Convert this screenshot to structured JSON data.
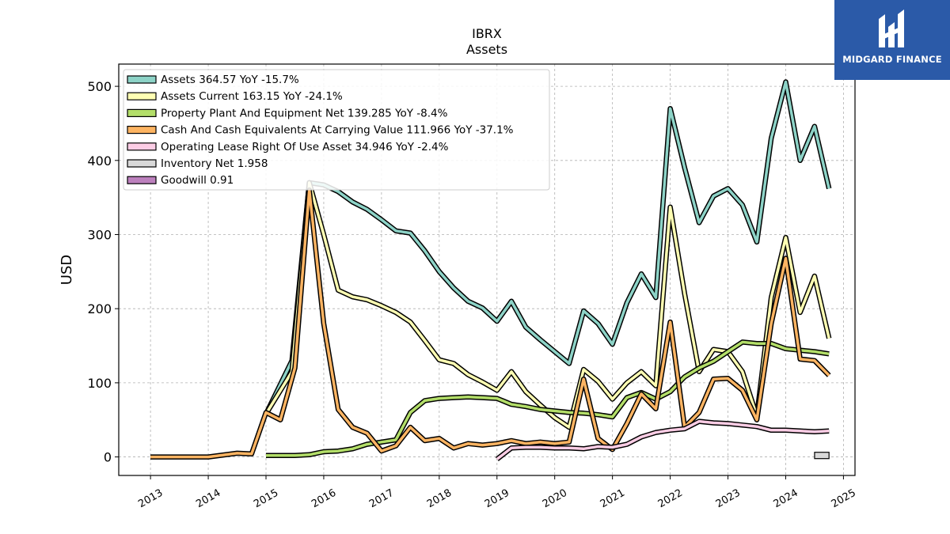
{
  "branding": {
    "logo_text": "MIDGARD FINANCE",
    "logo_color": "#2b5aa8"
  },
  "chart_data": {
    "type": "line",
    "title": "IBRX",
    "subtitle": "Assets",
    "ylabel": "USD",
    "xlabel": "",
    "xlim": [
      2012.45,
      2025.2
    ],
    "ylim": [
      -25,
      530
    ],
    "yticks": [
      0,
      100,
      200,
      300,
      400,
      500
    ],
    "xticks": [
      2013,
      2014,
      2015,
      2016,
      2017,
      2018,
      2019,
      2020,
      2021,
      2022,
      2023,
      2024,
      2025
    ],
    "grid": true,
    "legend_position": "top-left",
    "series": [
      {
        "name": "Assets",
        "legend": "Assets  364.57 YoY -15.7%",
        "color": "#8dd3c7",
        "points": [
          [
            2015.0,
            58
          ],
          [
            2015.45,
            130
          ],
          [
            2015.75,
            370
          ],
          [
            2016.0,
            367
          ],
          [
            2016.25,
            358
          ],
          [
            2016.5,
            344
          ],
          [
            2016.75,
            334
          ],
          [
            2017.0,
            320
          ],
          [
            2017.25,
            305
          ],
          [
            2017.5,
            302
          ],
          [
            2017.75,
            278
          ],
          [
            2018.0,
            250
          ],
          [
            2018.25,
            228
          ],
          [
            2018.5,
            210
          ],
          [
            2018.75,
            201
          ],
          [
            2019.0,
            183
          ],
          [
            2019.25,
            210
          ],
          [
            2019.5,
            175
          ],
          [
            2019.75,
            158
          ],
          [
            2020.0,
            142
          ],
          [
            2020.25,
            126
          ],
          [
            2020.5,
            197
          ],
          [
            2020.75,
            180
          ],
          [
            2021.0,
            152
          ],
          [
            2021.25,
            208
          ],
          [
            2021.5,
            247
          ],
          [
            2021.75,
            215
          ],
          [
            2022.0,
            470
          ],
          [
            2022.25,
            390
          ],
          [
            2022.5,
            316
          ],
          [
            2022.75,
            352
          ],
          [
            2023.0,
            362
          ],
          [
            2023.25,
            340
          ],
          [
            2023.5,
            290
          ],
          [
            2023.75,
            430
          ],
          [
            2024.0,
            506
          ],
          [
            2024.25,
            400
          ],
          [
            2024.5,
            446
          ],
          [
            2024.75,
            362
          ]
        ]
      },
      {
        "name": "Assets Current",
        "legend": "Assets Current  163.15 YoY -24.1%",
        "color": "#ffffb3",
        "points": [
          [
            2015.0,
            58
          ],
          [
            2015.45,
            115
          ],
          [
            2015.75,
            370
          ],
          [
            2016.0,
            300
          ],
          [
            2016.25,
            225
          ],
          [
            2016.5,
            216
          ],
          [
            2016.75,
            212
          ],
          [
            2017.0,
            204
          ],
          [
            2017.25,
            195
          ],
          [
            2017.5,
            182
          ],
          [
            2017.75,
            157
          ],
          [
            2018.0,
            131
          ],
          [
            2018.25,
            126
          ],
          [
            2018.5,
            111
          ],
          [
            2018.75,
            101
          ],
          [
            2019.0,
            90
          ],
          [
            2019.25,
            115
          ],
          [
            2019.5,
            88
          ],
          [
            2019.75,
            70
          ],
          [
            2020.0,
            53
          ],
          [
            2020.25,
            40
          ],
          [
            2020.5,
            118
          ],
          [
            2020.75,
            102
          ],
          [
            2021.0,
            78
          ],
          [
            2021.25,
            100
          ],
          [
            2021.5,
            115
          ],
          [
            2021.75,
            96
          ],
          [
            2022.0,
            337
          ],
          [
            2022.25,
            220
          ],
          [
            2022.5,
            115
          ],
          [
            2022.75,
            145
          ],
          [
            2023.0,
            142
          ],
          [
            2023.25,
            115
          ],
          [
            2023.5,
            55
          ],
          [
            2023.75,
            215
          ],
          [
            2024.0,
            296
          ],
          [
            2024.25,
            195
          ],
          [
            2024.5,
            244
          ],
          [
            2024.75,
            160
          ]
        ]
      },
      {
        "name": "Property Plant And Equipment Net",
        "legend": "Property Plant And Equipment Net  139.285 YoY -8.4%",
        "color": "#b3de69",
        "points": [
          [
            2015.0,
            2
          ],
          [
            2015.5,
            2
          ],
          [
            2015.75,
            3
          ],
          [
            2016.0,
            7
          ],
          [
            2016.25,
            8
          ],
          [
            2016.5,
            11
          ],
          [
            2016.75,
            17
          ],
          [
            2017.0,
            20
          ],
          [
            2017.25,
            23
          ],
          [
            2017.5,
            60
          ],
          [
            2017.75,
            76
          ],
          [
            2018.0,
            79
          ],
          [
            2018.25,
            80
          ],
          [
            2018.5,
            81
          ],
          [
            2018.75,
            80
          ],
          [
            2019.0,
            79
          ],
          [
            2019.25,
            71
          ],
          [
            2019.5,
            68
          ],
          [
            2019.75,
            64
          ],
          [
            2020.0,
            62
          ],
          [
            2020.25,
            60
          ],
          [
            2020.5,
            59
          ],
          [
            2020.75,
            57
          ],
          [
            2021.0,
            54
          ],
          [
            2021.25,
            80
          ],
          [
            2021.5,
            87
          ],
          [
            2021.75,
            78
          ],
          [
            2022.0,
            88
          ],
          [
            2022.25,
            108
          ],
          [
            2022.5,
            120
          ],
          [
            2022.75,
            129
          ],
          [
            2023.0,
            142
          ],
          [
            2023.25,
            155
          ],
          [
            2023.5,
            153
          ],
          [
            2023.75,
            153
          ],
          [
            2024.0,
            146
          ],
          [
            2024.25,
            144
          ],
          [
            2024.5,
            142
          ],
          [
            2024.75,
            139
          ]
        ]
      },
      {
        "name": "Cash And Cash Equivalents At Carrying Value",
        "legend": "Cash And Cash Equivalents At Carrying Value  111.966 YoY -37.1%",
        "color": "#fdb462",
        "points": [
          [
            2013.0,
            0
          ],
          [
            2014.0,
            0
          ],
          [
            2014.5,
            5
          ],
          [
            2014.75,
            4
          ],
          [
            2015.0,
            60
          ],
          [
            2015.25,
            50
          ],
          [
            2015.5,
            120
          ],
          [
            2015.75,
            360
          ],
          [
            2016.0,
            180
          ],
          [
            2016.25,
            64
          ],
          [
            2016.5,
            40
          ],
          [
            2016.75,
            32
          ],
          [
            2017.0,
            8
          ],
          [
            2017.25,
            15
          ],
          [
            2017.5,
            40
          ],
          [
            2017.75,
            22
          ],
          [
            2018.0,
            25
          ],
          [
            2018.25,
            12
          ],
          [
            2018.5,
            18
          ],
          [
            2018.75,
            16
          ],
          [
            2019.0,
            18
          ],
          [
            2019.25,
            22
          ],
          [
            2019.5,
            18
          ],
          [
            2019.75,
            20
          ],
          [
            2020.0,
            18
          ],
          [
            2020.25,
            20
          ],
          [
            2020.5,
            105
          ],
          [
            2020.75,
            25
          ],
          [
            2021.0,
            10
          ],
          [
            2021.25,
            45
          ],
          [
            2021.5,
            85
          ],
          [
            2021.75,
            65
          ],
          [
            2022.0,
            182
          ],
          [
            2022.25,
            40
          ],
          [
            2022.5,
            60
          ],
          [
            2022.75,
            105
          ],
          [
            2023.0,
            106
          ],
          [
            2023.25,
            90
          ],
          [
            2023.5,
            50
          ],
          [
            2023.75,
            180
          ],
          [
            2024.0,
            268
          ],
          [
            2024.25,
            132
          ],
          [
            2024.5,
            130
          ],
          [
            2024.75,
            110
          ]
        ]
      },
      {
        "name": "Operating Lease Right Of Use Asset",
        "legend": "Operating Lease Right Of Use Asset  34.946 YoY -2.4%",
        "color": "#fccde5",
        "points": [
          [
            2019.0,
            -3
          ],
          [
            2019.25,
            12
          ],
          [
            2019.5,
            13
          ],
          [
            2019.75,
            13
          ],
          [
            2020.0,
            12
          ],
          [
            2020.25,
            12
          ],
          [
            2020.5,
            11
          ],
          [
            2020.75,
            14
          ],
          [
            2021.0,
            13
          ],
          [
            2021.25,
            17
          ],
          [
            2021.5,
            27
          ],
          [
            2021.75,
            33
          ],
          [
            2022.0,
            36
          ],
          [
            2022.25,
            38
          ],
          [
            2022.5,
            48
          ],
          [
            2022.75,
            46
          ],
          [
            2023.0,
            45
          ],
          [
            2023.25,
            43
          ],
          [
            2023.5,
            41
          ],
          [
            2023.75,
            36
          ],
          [
            2024.0,
            36
          ],
          [
            2024.25,
            35
          ],
          [
            2024.5,
            34
          ],
          [
            2024.75,
            35
          ]
        ]
      },
      {
        "name": "Inventory Net",
        "legend": "Inventory Net  1.958",
        "color": "#d9d9d9",
        "points": [
          [
            2024.5,
            2
          ],
          [
            2024.75,
            2
          ]
        ]
      },
      {
        "name": "Goodwill",
        "legend": "Goodwill  0.91",
        "color": "#bc80bd",
        "points": []
      }
    ]
  }
}
